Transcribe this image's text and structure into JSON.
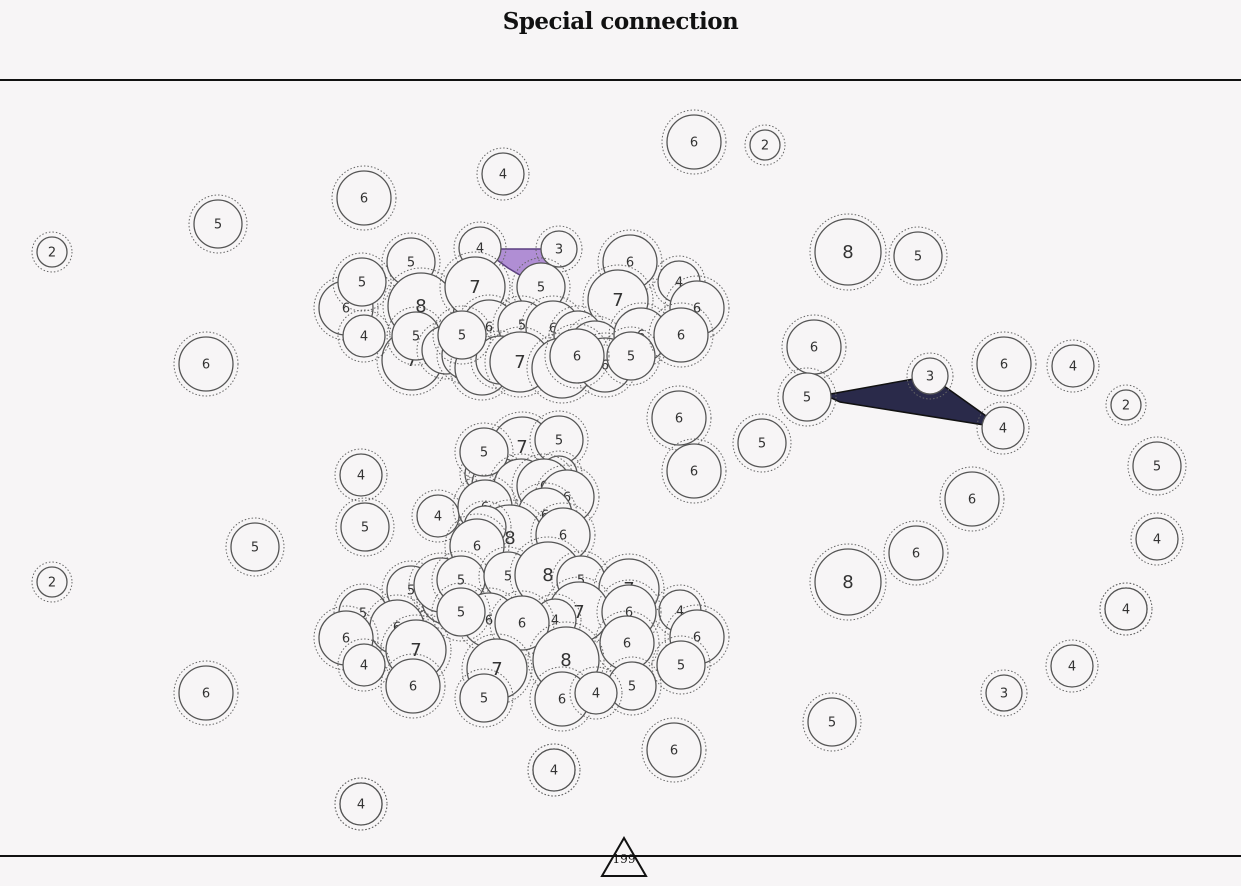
{
  "header": {
    "title": "Special connection"
  },
  "footer": {
    "counter": "199"
  },
  "colors": {
    "purple_connection": "#b08ed4",
    "navy_connection": "#2a2a4a",
    "circle_stroke": "#555555",
    "circle_fill": "#f7f5f6"
  },
  "nodes": [
    {
      "v": "6"
    },
    {
      "v": "2"
    },
    {
      "v": "4"
    },
    {
      "v": "6"
    },
    {
      "v": "5"
    },
    {
      "v": "2"
    },
    {
      "v": "6"
    },
    {
      "v": "2"
    },
    {
      "v": "6"
    },
    {
      "v": "5"
    },
    {
      "v": "4"
    },
    {
      "v": "5"
    },
    {
      "v": "4"
    },
    {
      "v": "4"
    },
    {
      "v": "4"
    },
    {
      "v": "5"
    },
    {
      "v": "6"
    },
    {
      "v": "7"
    },
    {
      "v": "3"
    },
    {
      "v": "5"
    },
    {
      "v": "4"
    },
    {
      "v": "5"
    },
    {
      "v": "8"
    },
    {
      "v": "6"
    },
    {
      "v": "7"
    },
    {
      "v": "7"
    },
    {
      "v": "5"
    },
    {
      "v": "6"
    },
    {
      "v": "4"
    },
    {
      "v": "6"
    },
    {
      "v": "4"
    },
    {
      "v": "5"
    },
    {
      "v": "5"
    },
    {
      "v": "6"
    },
    {
      "v": "5"
    },
    {
      "v": "6"
    },
    {
      "v": "5"
    },
    {
      "v": "5"
    },
    {
      "v": "7"
    },
    {
      "v": "6"
    },
    {
      "v": "7"
    },
    {
      "v": "6"
    },
    {
      "v": "5"
    },
    {
      "v": "6"
    },
    {
      "v": "5"
    },
    {
      "v": "6"
    },
    {
      "v": "6"
    },
    {
      "v": "6"
    },
    {
      "v": "8"
    },
    {
      "v": "5"
    },
    {
      "v": "6"
    },
    {
      "v": "5"
    },
    {
      "v": "3"
    },
    {
      "v": "6"
    },
    {
      "v": "4"
    },
    {
      "v": "2"
    },
    {
      "v": "5"
    },
    {
      "v": "6"
    },
    {
      "v": "4"
    },
    {
      "v": "6"
    },
    {
      "v": "6"
    },
    {
      "v": "4"
    },
    {
      "v": "8"
    },
    {
      "v": "4"
    },
    {
      "v": "5"
    },
    {
      "v": "7"
    },
    {
      "v": "5"
    },
    {
      "v": "3"
    },
    {
      "v": "6"
    },
    {
      "v": "5"
    },
    {
      "v": "6"
    },
    {
      "v": "3"
    },
    {
      "v": "6"
    },
    {
      "v": "6"
    },
    {
      "v": "6"
    },
    {
      "v": "6"
    },
    {
      "v": "8"
    },
    {
      "v": "6"
    },
    {
      "v": "4"
    },
    {
      "v": "6"
    },
    {
      "v": "5"
    },
    {
      "v": "5"
    },
    {
      "v": "6"
    },
    {
      "v": "5"
    },
    {
      "v": "5"
    },
    {
      "v": "8"
    },
    {
      "v": "5"
    },
    {
      "v": "7"
    },
    {
      "v": "7"
    },
    {
      "v": "5"
    },
    {
      "v": "6"
    },
    {
      "v": "6"
    },
    {
      "v": "4"
    },
    {
      "v": "6"
    },
    {
      "v": "6"
    },
    {
      "v": "4"
    },
    {
      "v": "6"
    },
    {
      "v": "5"
    },
    {
      "v": "6"
    },
    {
      "v": "6"
    },
    {
      "v": "7"
    },
    {
      "v": "7"
    },
    {
      "v": "8"
    },
    {
      "v": "5"
    },
    {
      "v": "5"
    },
    {
      "v": "6"
    },
    {
      "v": "6"
    },
    {
      "v": "4"
    },
    {
      "v": "5"
    },
    {
      "v": "4"
    },
    {
      "v": "3"
    },
    {
      "v": "5"
    },
    {
      "v": "6"
    },
    {
      "v": "4"
    },
    {
      "v": "4"
    },
    {
      "v": "4"
    },
    {
      "v": "4"
    }
  ]
}
